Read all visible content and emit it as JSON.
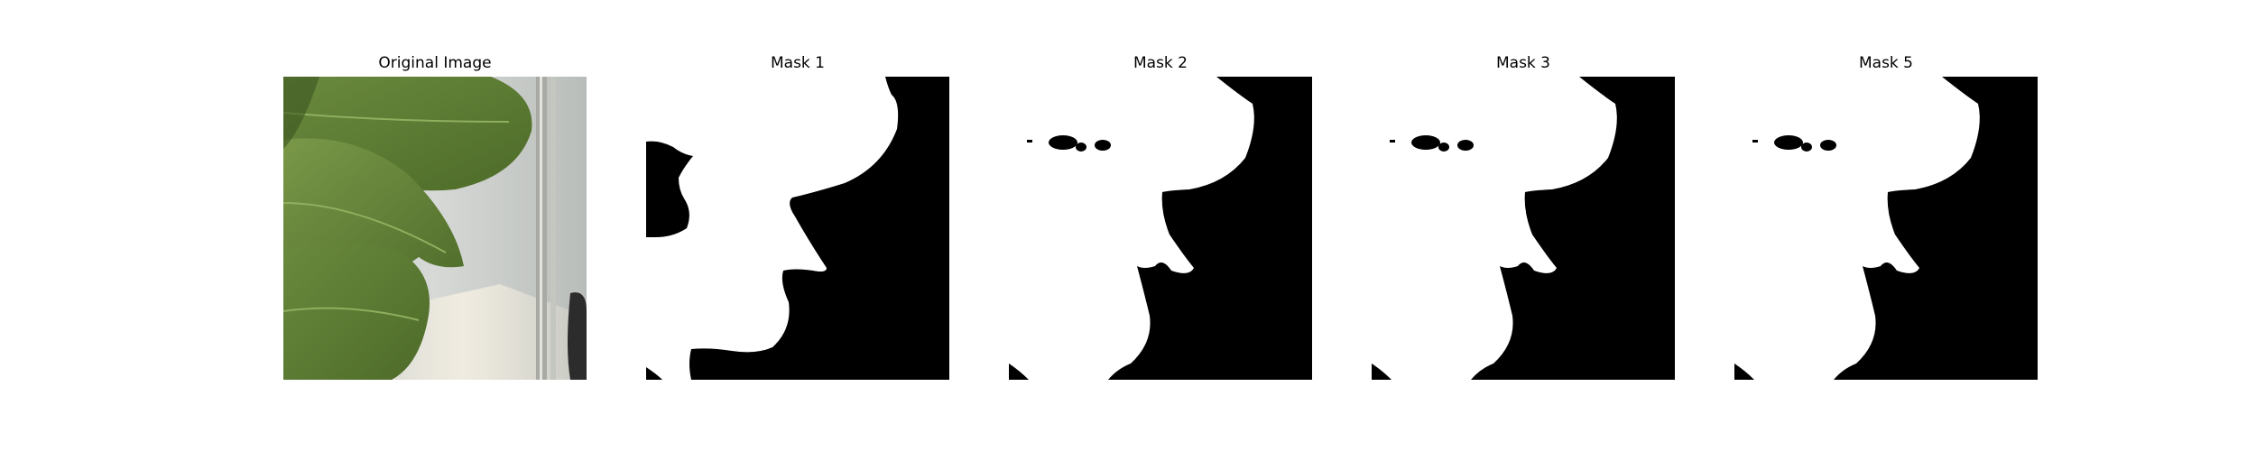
{
  "figure": {
    "panels": [
      {
        "title": "Original Image"
      },
      {
        "title": "Mask 1"
      },
      {
        "title": "Mask 2"
      },
      {
        "title": "Mask 3"
      },
      {
        "title": "Mask 5"
      }
    ]
  },
  "colors": {
    "background": "#ffffff",
    "mask_foreground": "#ffffff",
    "mask_background": "#000000",
    "leaf_green": "#5f7d3a",
    "leaf_dark": "#415c24",
    "wall_light": "#d9dcd8",
    "sunlight": "#eee9dc"
  }
}
